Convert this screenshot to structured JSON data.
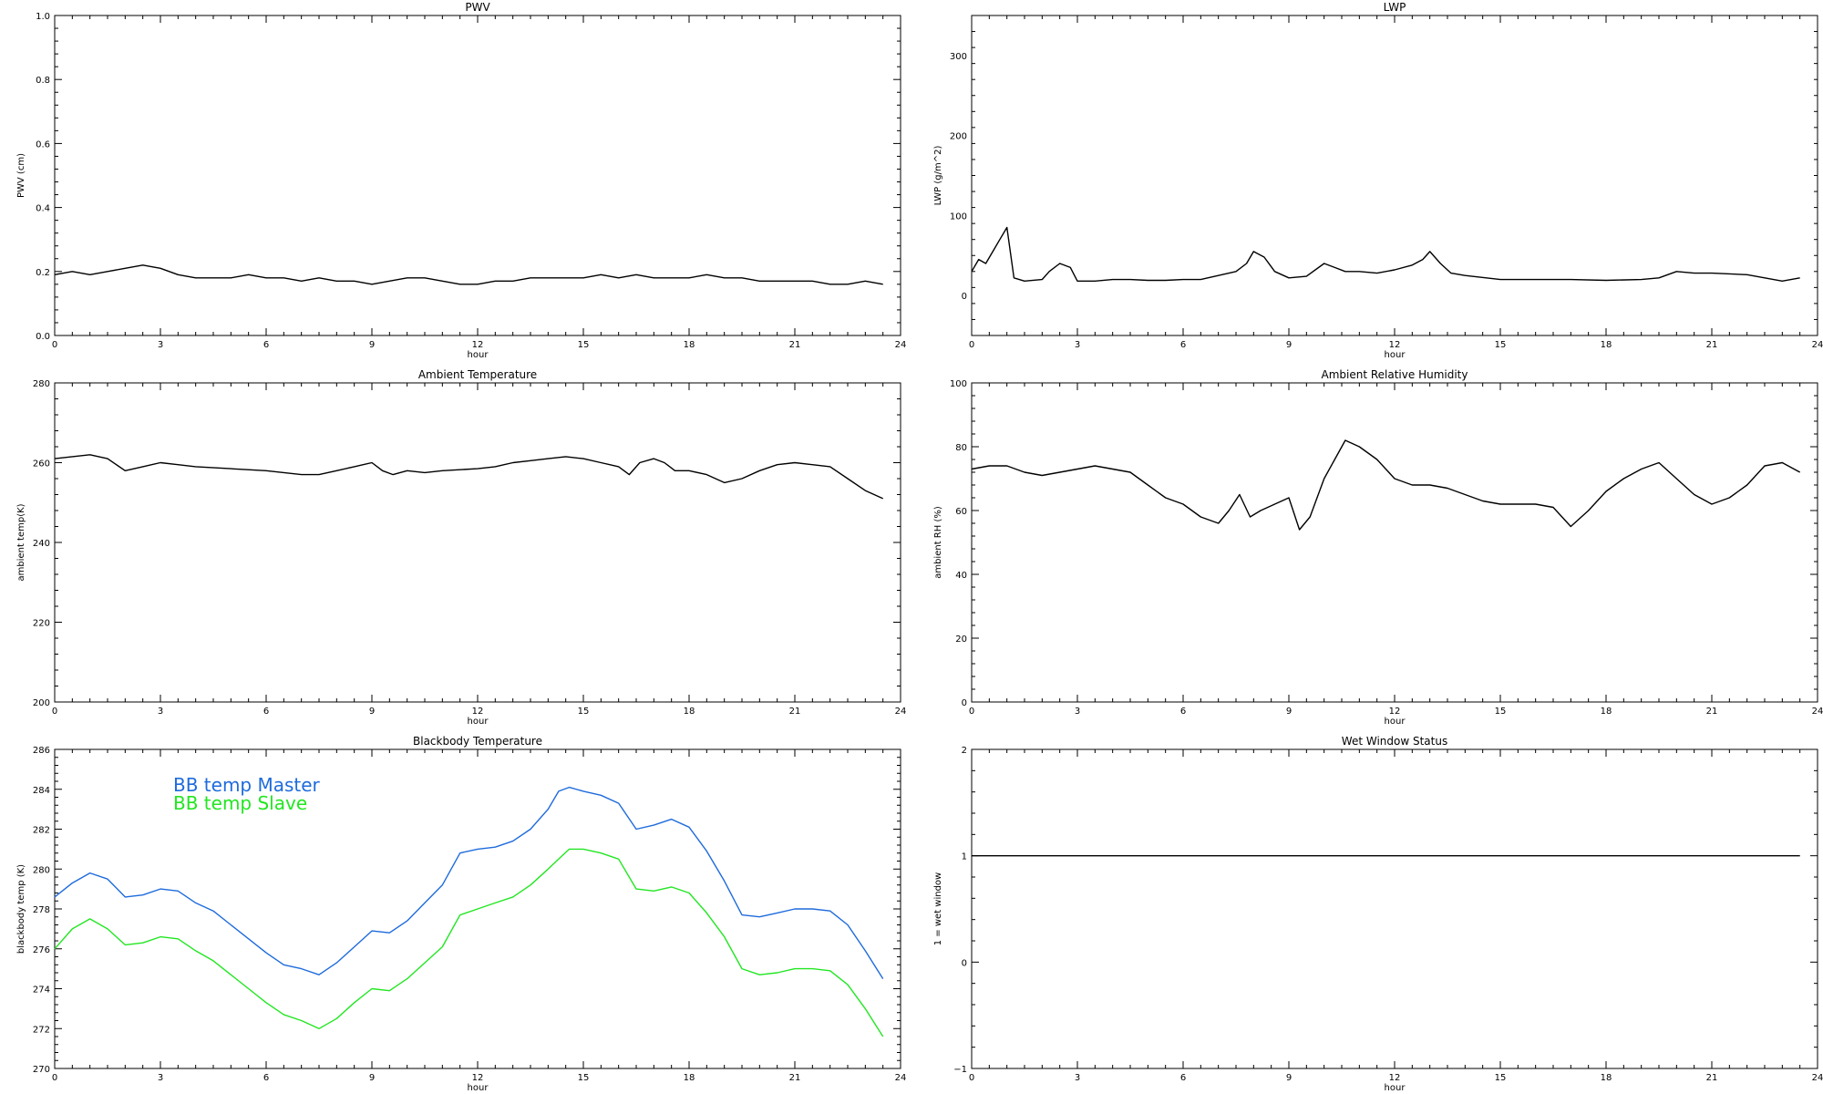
{
  "chart_data": [
    {
      "type": "line",
      "title": "PWV",
      "xlabel": "hour",
      "ylabel": "PWV (cm)",
      "xlim": [
        0,
        24
      ],
      "ylim": [
        0.0,
        1.0
      ],
      "xticks": [
        0,
        3,
        6,
        9,
        12,
        15,
        18,
        21,
        24
      ],
      "xtick_labels": [
        "0",
        "3",
        "6",
        "9",
        "12",
        "15",
        "18",
        "21",
        "24"
      ],
      "yticks": [
        0.0,
        0.2,
        0.4,
        0.6,
        0.8,
        1.0
      ],
      "ytick_labels": [
        "0.0",
        "0.2",
        "0.4",
        "0.6",
        "0.8",
        "1.0"
      ],
      "series": [
        {
          "color": "#000000",
          "x": [
            0,
            0.5,
            1,
            1.5,
            2,
            2.5,
            3,
            3.5,
            4,
            4.5,
            5,
            5.5,
            6,
            6.5,
            7,
            7.5,
            8,
            8.5,
            9,
            9.5,
            10,
            10.5,
            11,
            11.5,
            12,
            12.5,
            13,
            13.5,
            14,
            14.5,
            15,
            15.5,
            16,
            16.5,
            17,
            17.5,
            18,
            18.5,
            19,
            19.5,
            20,
            20.5,
            21,
            21.5,
            22,
            22.5,
            23,
            23.5
          ],
          "y": [
            0.19,
            0.2,
            0.19,
            0.2,
            0.21,
            0.22,
            0.21,
            0.19,
            0.18,
            0.18,
            0.18,
            0.19,
            0.18,
            0.18,
            0.17,
            0.18,
            0.17,
            0.17,
            0.16,
            0.17,
            0.18,
            0.18,
            0.17,
            0.16,
            0.16,
            0.17,
            0.17,
            0.18,
            0.18,
            0.18,
            0.18,
            0.19,
            0.18,
            0.19,
            0.18,
            0.18,
            0.18,
            0.19,
            0.18,
            0.18,
            0.17,
            0.17,
            0.17,
            0.17,
            0.16,
            0.16,
            0.17,
            0.16
          ]
        }
      ]
    },
    {
      "type": "line",
      "title": "LWP",
      "xlabel": "hour",
      "ylabel": "LWP (g/m^2)",
      "xlim": [
        0,
        24
      ],
      "ylim": [
        -50,
        350
      ],
      "xticks": [
        0,
        3,
        6,
        9,
        12,
        15,
        18,
        21,
        24
      ],
      "xtick_labels": [
        "0",
        "3",
        "6",
        "9",
        "12",
        "15",
        "18",
        "21",
        "24"
      ],
      "yticks": [
        0,
        100,
        200,
        300
      ],
      "ytick_labels": [
        "0",
        "100",
        "200",
        "300"
      ],
      "series": [
        {
          "color": "#000000",
          "x": [
            0,
            0.2,
            0.4,
            0.6,
            0.8,
            1.0,
            1.2,
            1.5,
            2.0,
            2.2,
            2.5,
            2.8,
            3.0,
            3.5,
            4.0,
            4.5,
            5.0,
            5.5,
            6.0,
            6.5,
            7.0,
            7.5,
            7.8,
            8.0,
            8.3,
            8.6,
            9.0,
            9.5,
            10.0,
            10.3,
            10.6,
            11.0,
            11.5,
            12.0,
            12.5,
            12.8,
            13.0,
            13.3,
            13.6,
            14.0,
            15.0,
            16.0,
            17.0,
            18.0,
            19.0,
            19.5,
            20.0,
            20.5,
            21.0,
            22.0,
            22.5,
            23.0,
            23.5
          ],
          "y": [
            30,
            45,
            40,
            55,
            70,
            85,
            22,
            18,
            20,
            30,
            40,
            35,
            18,
            18,
            20,
            20,
            19,
            19,
            20,
            20,
            25,
            30,
            40,
            55,
            48,
            30,
            22,
            24,
            40,
            35,
            30,
            30,
            28,
            32,
            38,
            45,
            55,
            40,
            28,
            25,
            20,
            20,
            20,
            19,
            20,
            22,
            30,
            28,
            28,
            26,
            22,
            18,
            22
          ]
        }
      ]
    },
    {
      "type": "line",
      "title": "Ambient Temperature",
      "xlabel": "hour",
      "ylabel": "ambient temp(K)",
      "xlim": [
        0,
        24
      ],
      "ylim": [
        200,
        280
      ],
      "xticks": [
        0,
        3,
        6,
        9,
        12,
        15,
        18,
        21,
        24
      ],
      "xtick_labels": [
        "0",
        "3",
        "6",
        "9",
        "12",
        "15",
        "18",
        "21",
        "24"
      ],
      "yticks": [
        200,
        220,
        240,
        260,
        280
      ],
      "ytick_labels": [
        "200",
        "220",
        "240",
        "260",
        "280"
      ],
      "series": [
        {
          "color": "#000000",
          "x": [
            0,
            0.5,
            1.0,
            1.5,
            2.0,
            2.5,
            3.0,
            3.5,
            4.0,
            5.0,
            6.0,
            6.5,
            7.0,
            7.5,
            8.0,
            8.5,
            9.0,
            9.3,
            9.6,
            10.0,
            10.5,
            11.0,
            12.0,
            12.5,
            13.0,
            13.5,
            14.0,
            14.5,
            15.0,
            15.5,
            16.0,
            16.3,
            16.6,
            17.0,
            17.3,
            17.6,
            18.0,
            18.5,
            19.0,
            19.5,
            20.0,
            20.5,
            21.0,
            21.5,
            22.0,
            22.5,
            23.0,
            23.5
          ],
          "y": [
            261,
            261.5,
            262,
            261,
            258,
            259,
            260,
            259.5,
            259,
            258.5,
            258,
            257.5,
            257,
            257,
            258,
            259,
            260,
            258,
            257,
            258,
            257.5,
            258,
            258.5,
            259,
            260,
            260.5,
            261,
            261.5,
            261,
            260,
            259,
            257,
            260,
            261,
            260,
            258,
            258,
            257,
            255,
            256,
            258,
            259.5,
            260,
            259.5,
            259,
            256,
            253,
            251
          ]
        }
      ]
    },
    {
      "type": "line",
      "title": "Ambient Relative Humidity",
      "xlabel": "hour",
      "ylabel": "ambient RH (%)",
      "xlim": [
        0,
        24
      ],
      "ylim": [
        0,
        100
      ],
      "xticks": [
        0,
        3,
        6,
        9,
        12,
        15,
        18,
        21,
        24
      ],
      "xtick_labels": [
        "0",
        "3",
        "6",
        "9",
        "12",
        "15",
        "18",
        "21",
        "24"
      ],
      "yticks": [
        0,
        20,
        40,
        60,
        80,
        100
      ],
      "ytick_labels": [
        "0",
        "20",
        "40",
        "60",
        "80",
        "100"
      ],
      "series": [
        {
          "color": "#000000",
          "x": [
            0,
            0.5,
            1.0,
            1.5,
            2.0,
            2.5,
            3.0,
            3.5,
            4.0,
            4.5,
            5.0,
            5.5,
            6.0,
            6.5,
            7.0,
            7.3,
            7.6,
            7.9,
            8.2,
            8.6,
            9.0,
            9.3,
            9.6,
            10.0,
            10.3,
            10.6,
            11.0,
            11.5,
            12.0,
            12.5,
            13.0,
            13.5,
            14.0,
            14.5,
            15.0,
            15.5,
            16.0,
            16.5,
            17.0,
            17.5,
            18.0,
            18.5,
            19.0,
            19.5,
            20.0,
            20.5,
            21.0,
            21.5,
            22.0,
            22.5,
            23.0,
            23.5
          ],
          "y": [
            73,
            74,
            74,
            72,
            71,
            72,
            73,
            74,
            73,
            72,
            68,
            64,
            62,
            58,
            56,
            60,
            65,
            58,
            60,
            62,
            64,
            54,
            58,
            70,
            76,
            82,
            80,
            76,
            70,
            68,
            68,
            67,
            65,
            63,
            62,
            62,
            62,
            61,
            55,
            60,
            66,
            70,
            73,
            75,
            70,
            65,
            62,
            64,
            68,
            74,
            75,
            72
          ]
        }
      ]
    },
    {
      "type": "line",
      "title": "Blackbody Temperature",
      "xlabel": "hour",
      "ylabel": "blackbody temp (K)",
      "xlim": [
        0,
        24
      ],
      "ylim": [
        270,
        286
      ],
      "xticks": [
        0,
        3,
        6,
        9,
        12,
        15,
        18,
        21,
        24
      ],
      "xtick_labels": [
        "0",
        "3",
        "6",
        "9",
        "12",
        "15",
        "18",
        "21",
        "24"
      ],
      "yticks": [
        270,
        272,
        274,
        276,
        278,
        280,
        282,
        284,
        286
      ],
      "ytick_labels": [
        "270",
        "272",
        "274",
        "276",
        "278",
        "280",
        "282",
        "284",
        "286"
      ],
      "legend": [
        "BB temp Master",
        "BB temp Slave"
      ],
      "series": [
        {
          "name": "BB temp Master",
          "color": "#1e6bdc",
          "x": [
            0,
            0.5,
            1.0,
            1.5,
            2.0,
            2.5,
            3.0,
            3.5,
            4.0,
            4.5,
            5.0,
            5.5,
            6.0,
            6.5,
            7.0,
            7.5,
            8.0,
            8.5,
            9.0,
            9.5,
            10.0,
            10.5,
            11.0,
            11.5,
            12.0,
            12.5,
            13.0,
            13.5,
            14.0,
            14.3,
            14.6,
            15.0,
            15.5,
            16.0,
            16.5,
            17.0,
            17.5,
            18.0,
            18.5,
            19.0,
            19.5,
            20.0,
            20.5,
            21.0,
            21.5,
            22.0,
            22.5,
            23.0,
            23.5
          ],
          "y": [
            278.6,
            279.3,
            279.8,
            279.5,
            278.6,
            278.7,
            279.0,
            278.9,
            278.3,
            277.9,
            277.2,
            276.5,
            275.8,
            275.2,
            275.0,
            274.7,
            275.3,
            276.1,
            276.9,
            276.8,
            277.4,
            278.3,
            279.2,
            280.8,
            281.0,
            281.1,
            281.4,
            282.0,
            283.0,
            283.9,
            284.1,
            283.9,
            283.7,
            283.3,
            282.0,
            282.2,
            282.5,
            282.1,
            280.9,
            279.4,
            277.7,
            277.6,
            277.8,
            278.0,
            278.0,
            277.9,
            277.2,
            275.9,
            274.5
          ]
        },
        {
          "name": "BB temp Slave",
          "color": "#22e622",
          "x": [
            0,
            0.5,
            1.0,
            1.5,
            2.0,
            2.5,
            3.0,
            3.5,
            4.0,
            4.5,
            5.0,
            5.5,
            6.0,
            6.5,
            7.0,
            7.5,
            8.0,
            8.5,
            9.0,
            9.5,
            10.0,
            10.5,
            11.0,
            11.5,
            12.0,
            12.5,
            13.0,
            13.5,
            14.0,
            14.3,
            14.6,
            15.0,
            15.5,
            16.0,
            16.5,
            17.0,
            17.5,
            18.0,
            18.5,
            19.0,
            19.5,
            20.0,
            20.5,
            21.0,
            21.5,
            22.0,
            22.5,
            23.0,
            23.5
          ],
          "y": [
            276.0,
            277.0,
            277.5,
            277.0,
            276.2,
            276.3,
            276.6,
            276.5,
            275.9,
            275.4,
            274.7,
            274.0,
            273.3,
            272.7,
            272.4,
            272.0,
            272.5,
            273.3,
            274.0,
            273.9,
            274.5,
            275.3,
            276.1,
            277.7,
            278.0,
            278.3,
            278.6,
            279.2,
            280.0,
            280.5,
            281.0,
            281.0,
            280.8,
            280.5,
            279.0,
            278.9,
            279.1,
            278.8,
            277.8,
            276.6,
            275.0,
            274.7,
            274.8,
            275.0,
            275.0,
            274.9,
            274.2,
            273.0,
            271.6
          ]
        }
      ]
    },
    {
      "type": "line",
      "title": "Wet Window Status",
      "xlabel": "hour",
      "ylabel": "1 = wet window",
      "xlim": [
        0,
        24
      ],
      "ylim": [
        -1,
        2
      ],
      "xticks": [
        0,
        3,
        6,
        9,
        12,
        15,
        18,
        21,
        24
      ],
      "xtick_labels": [
        "0",
        "3",
        "6",
        "9",
        "12",
        "15",
        "18",
        "21",
        "24"
      ],
      "yticks": [
        -1,
        0,
        1,
        2
      ],
      "ytick_labels": [
        "−1",
        "0",
        "1",
        "2"
      ],
      "series": [
        {
          "color": "#000000",
          "x": [
            0,
            23.5
          ],
          "y": [
            1,
            1
          ]
        }
      ]
    }
  ]
}
